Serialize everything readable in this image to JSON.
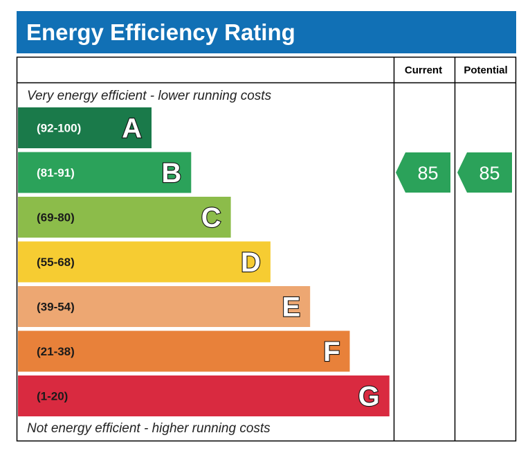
{
  "chart_data": {
    "type": "bar",
    "title": "Energy Efficiency Rating",
    "column_headers": {
      "current": "Current",
      "potential": "Potential"
    },
    "top_note": "Very energy efficient - lower running costs",
    "bottom_note": "Not energy efficient - higher running costs",
    "bands": [
      {
        "letter": "A",
        "range": "(92-100)",
        "min": 92,
        "max": 100,
        "color": "#1a7a4a",
        "text_color": "#ffffff"
      },
      {
        "letter": "B",
        "range": "(81-91)",
        "min": 81,
        "max": 91,
        "color": "#2ba25a",
        "text_color": "#ffffff"
      },
      {
        "letter": "C",
        "range": "(69-80)",
        "min": 69,
        "max": 80,
        "color": "#8cbc4a",
        "text_color": "#1a1a1a"
      },
      {
        "letter": "D",
        "range": "(55-68)",
        "min": 55,
        "max": 68,
        "color": "#f6cc32",
        "text_color": "#1a1a1a"
      },
      {
        "letter": "E",
        "range": "(39-54)",
        "min": 39,
        "max": 54,
        "color": "#eda772",
        "text_color": "#1a1a1a"
      },
      {
        "letter": "F",
        "range": "(21-38)",
        "min": 21,
        "max": 38,
        "color": "#e8813a",
        "text_color": "#1a1a1a"
      },
      {
        "letter": "G",
        "range": "(1-20)",
        "min": 1,
        "max": 20,
        "color": "#d92a40",
        "text_color": "#1a1a1a"
      }
    ],
    "current": {
      "value": "85",
      "band": "B",
      "color": "#2ba25a"
    },
    "potential": {
      "value": "85",
      "band": "B",
      "color": "#2ba25a"
    },
    "title_color": "#1170b5"
  }
}
